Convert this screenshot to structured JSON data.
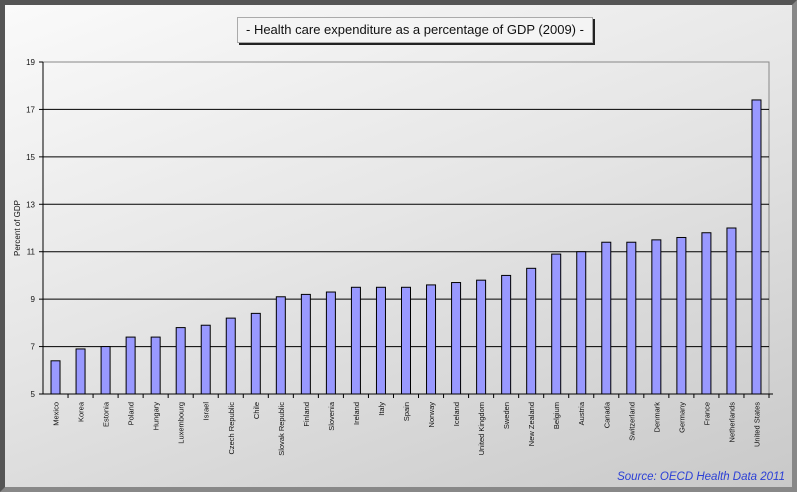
{
  "chart_data": {
    "type": "bar",
    "title": "-  Health care expenditure as a percentage of GDP (2009)  -",
    "xlabel": "",
    "ylabel": "Percent of GDP",
    "ylim": [
      5,
      19
    ],
    "yticks": [
      5,
      7,
      9,
      11,
      13,
      15,
      17,
      19
    ],
    "grid": true,
    "legend": "none",
    "bar_color": "#9999ff",
    "categories": [
      "Mexico",
      "Korea",
      "Estonia",
      "Poland",
      "Hungary",
      "Luxembourg",
      "Israel",
      "Czech Republic",
      "Chile",
      "Slovak Republic",
      "Finland",
      "Slovenia",
      "Ireland",
      "Italy",
      "Spain",
      "Norway",
      "Iceland",
      "United Kingdom",
      "Sweden",
      "New Zealand",
      "Belgium",
      "Austria",
      "Canada",
      "Switzerland",
      "Denmark",
      "Germany",
      "France",
      "Netherlands",
      "United States"
    ],
    "values": [
      6.4,
      6.9,
      7.0,
      7.4,
      7.4,
      7.8,
      7.9,
      8.2,
      8.4,
      9.1,
      9.2,
      9.3,
      9.5,
      9.5,
      9.5,
      9.6,
      9.7,
      9.8,
      10.0,
      10.3,
      10.9,
      11.0,
      11.4,
      11.4,
      11.5,
      11.6,
      11.8,
      12.0,
      17.4
    ],
    "annotations": [
      "Source: OECD Health Data 2011"
    ]
  },
  "source_note": "Source: OECD Health Data 2011",
  "colors": {
    "bar": "#9999ff",
    "source_text": "#2b3fd6"
  }
}
